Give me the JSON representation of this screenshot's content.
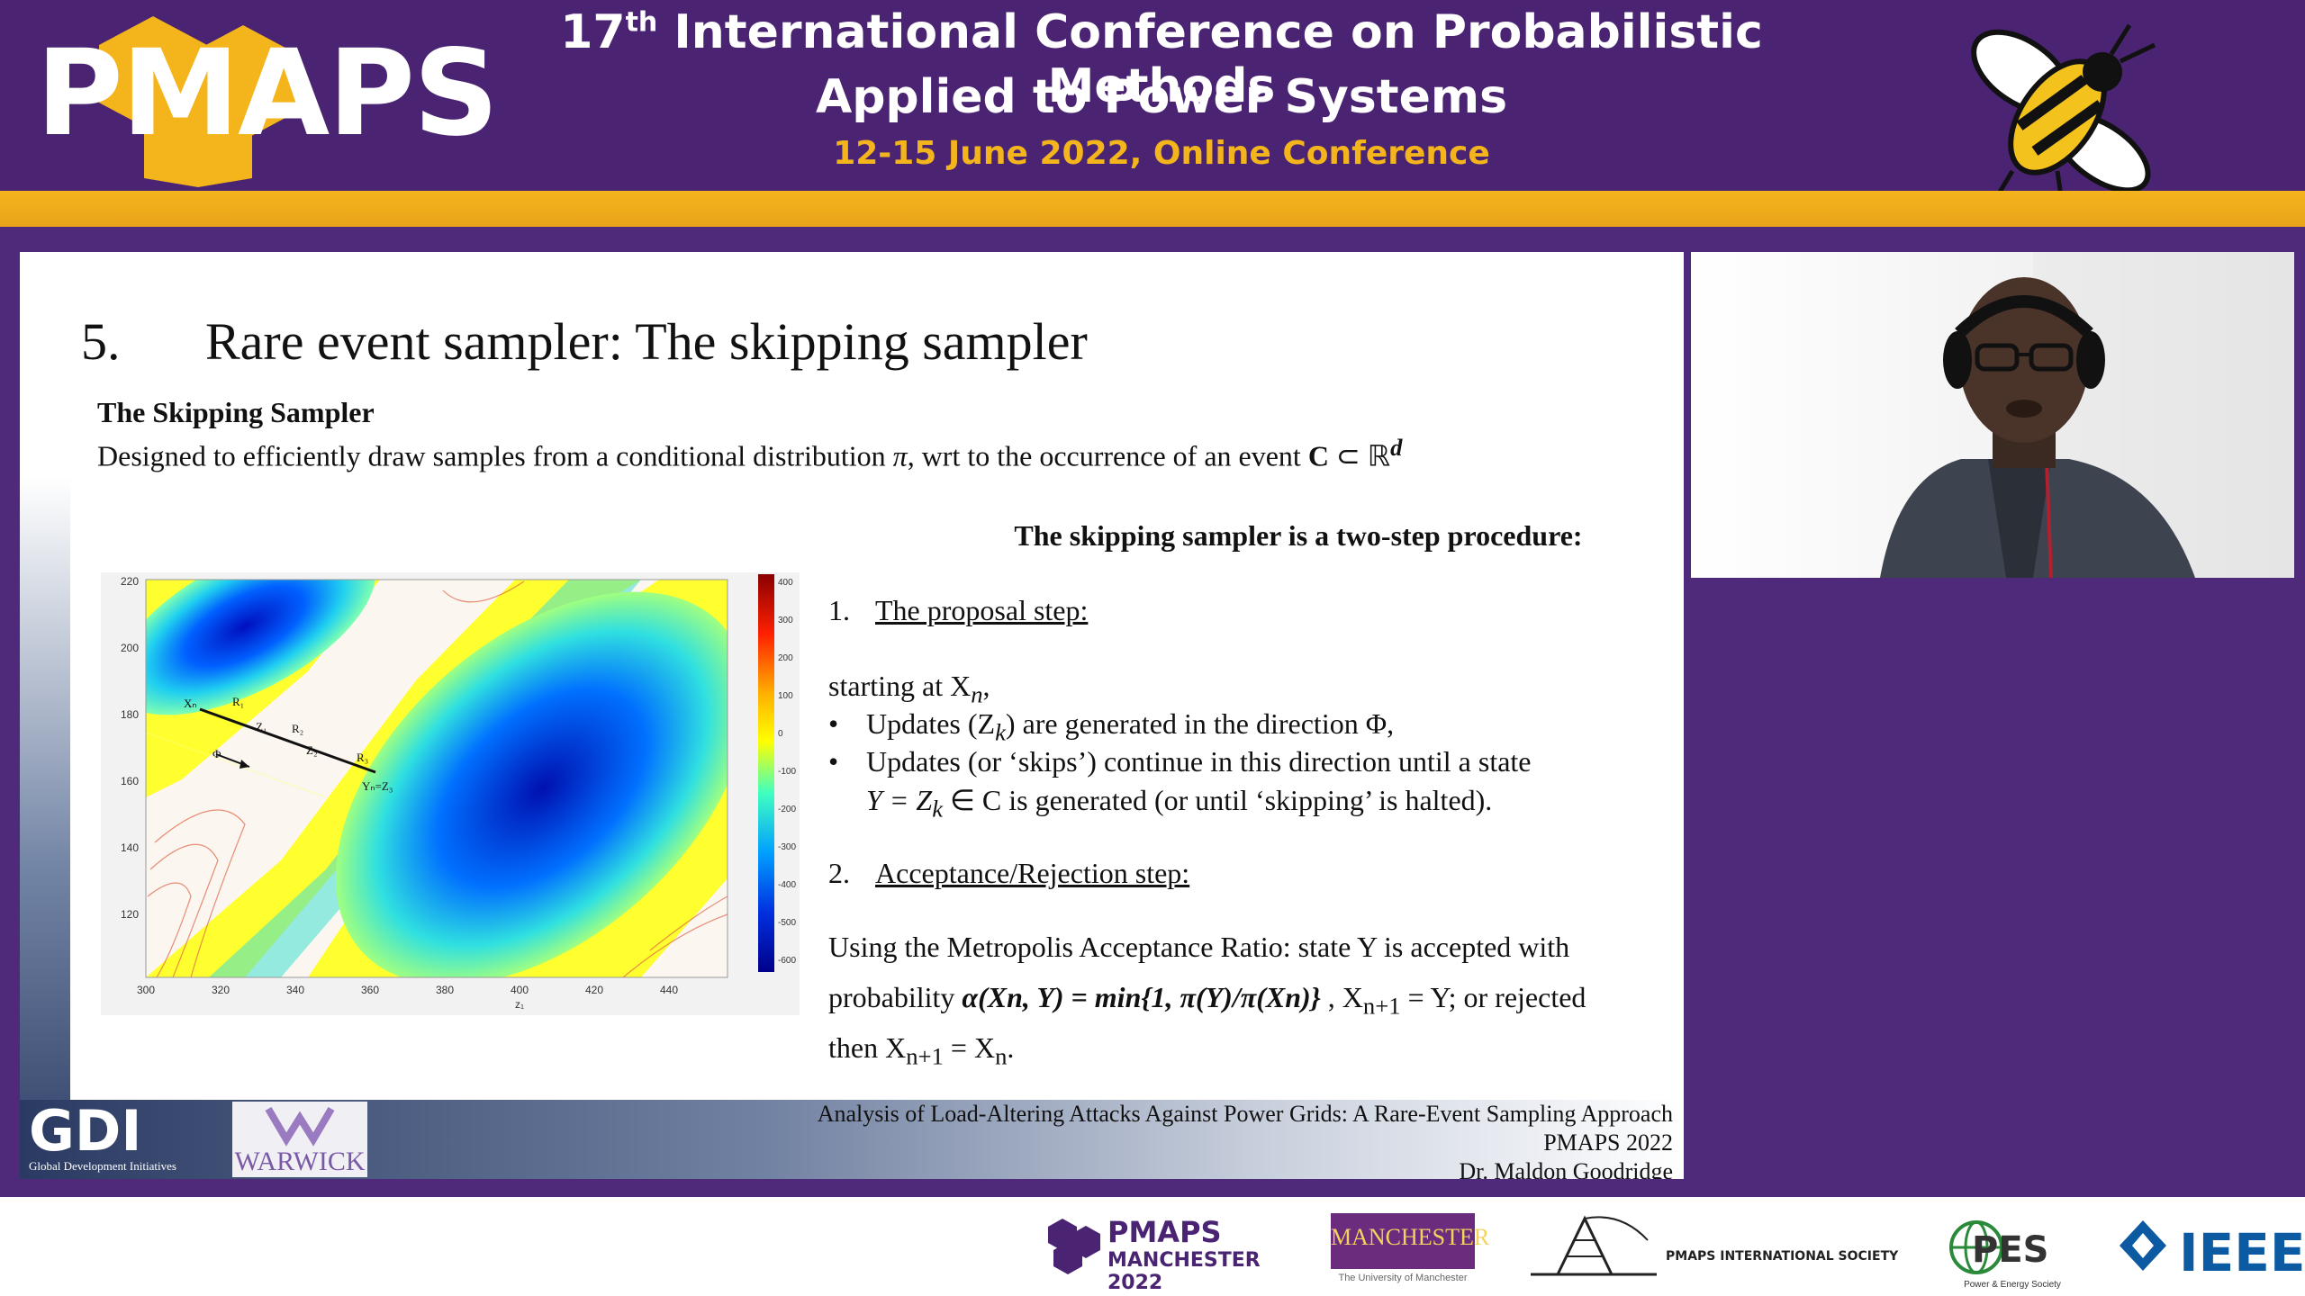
{
  "header": {
    "logo": "PMAPS",
    "line1_pre": "17",
    "line1_sup": "th",
    "line1_post": " International Conference on Probabilistic Methods",
    "line2": "Applied to Power Systems",
    "line3": "12-15 June 2022, Online Conference"
  },
  "slide": {
    "title_number": "5.",
    "title": "Rare event sampler: The skipping sampler",
    "sub_heading": "The Skipping Sampler",
    "sub_desc_pre": "Designed to efficiently draw samples from a conditional distribution ",
    "sub_desc_pi": "π",
    "sub_desc_mid": ", wrt to the occurrence of an event ",
    "sub_desc_c": "C",
    "sub_desc_post": " ⊂ ℝ",
    "sub_desc_sup": "d",
    "procedure_heading": "The skipping sampler is a two-step procedure:",
    "step1_num": "1.",
    "step1_label": "The proposal step:",
    "start_at": "starting at X",
    "start_at_sub": "n",
    "start_at_end": ",",
    "bullet_glyph": "•",
    "bullet1": "Updates (Z",
    "bullet1_sub": "k",
    "bullet1_end": ") are generated in the direction Φ,",
    "bullet2": "Updates (or ‘skips’) continue in this direction until a state",
    "bullet2b_pre": "Y = Z",
    "bullet2b_sub": "k",
    "bullet2b_post": " ∈ C is generated (or until ‘skipping’ is halted).",
    "step2_num": "2.",
    "step2_label": "Acceptance/Rejection step:",
    "accept1": "Using the Metropolis Acceptance Ratio: state Y is accepted with",
    "accept2_pre": "probability ",
    "accept2_formula": "α(Xn, Y) = min{1, π(Y)/π(Xn)}",
    "accept2_mid": " ,   X",
    "accept2_sub": "n+1",
    "accept2_post": " = Y;  or rejected",
    "accept3_pre": "then X",
    "accept3_sub": "n+1",
    "accept3_mid": " = X",
    "accept3_sub2": "n",
    "accept3_end": "."
  },
  "footer": {
    "line1": "Analysis of Load-Altering Attacks Against Power Grids: A Rare-Event Sampling Approach",
    "line2": "PMAPS 2022",
    "line3": "Dr. Maldon Goodridge",
    "gdi": "GDI",
    "gdi_sub": "Global Development Initiatives",
    "warwick": "WARWICK"
  },
  "plot": {
    "y_ticks": [
      "220",
      "200",
      "180",
      "160",
      "140",
      "120"
    ],
    "x_ticks": [
      "300",
      "320",
      "340",
      "360",
      "380",
      "400",
      "420",
      "440"
    ],
    "x_label": "z₁",
    "colorbar_ticks": [
      "400",
      "300",
      "200",
      "100",
      "0",
      "-100",
      "-200",
      "-300",
      "-400",
      "-500",
      "-600"
    ],
    "annotations": [
      "Xₙ",
      "R₁",
      "Z₁",
      "R₂",
      "Z₂",
      "R₃",
      "Yₙ=Z₃",
      "Φ"
    ]
  },
  "sponsors": {
    "pmaps_mc": "PMAPS",
    "pmaps_mc_sub": "MANCHESTER 2022",
    "manchester": "MANCHESTER",
    "manchester_sub": "The University of Manchester",
    "pmaps_soc": "PMAPS INTERNATIONAL SOCIETY",
    "pes": "PES",
    "pes_sub": "Power & Energy Society",
    "ieee": "IEEE"
  },
  "colors": {
    "header_purple": "#4a2472",
    "accent_gold": "#f4b41c",
    "background_purple": "#4f2a7a"
  }
}
